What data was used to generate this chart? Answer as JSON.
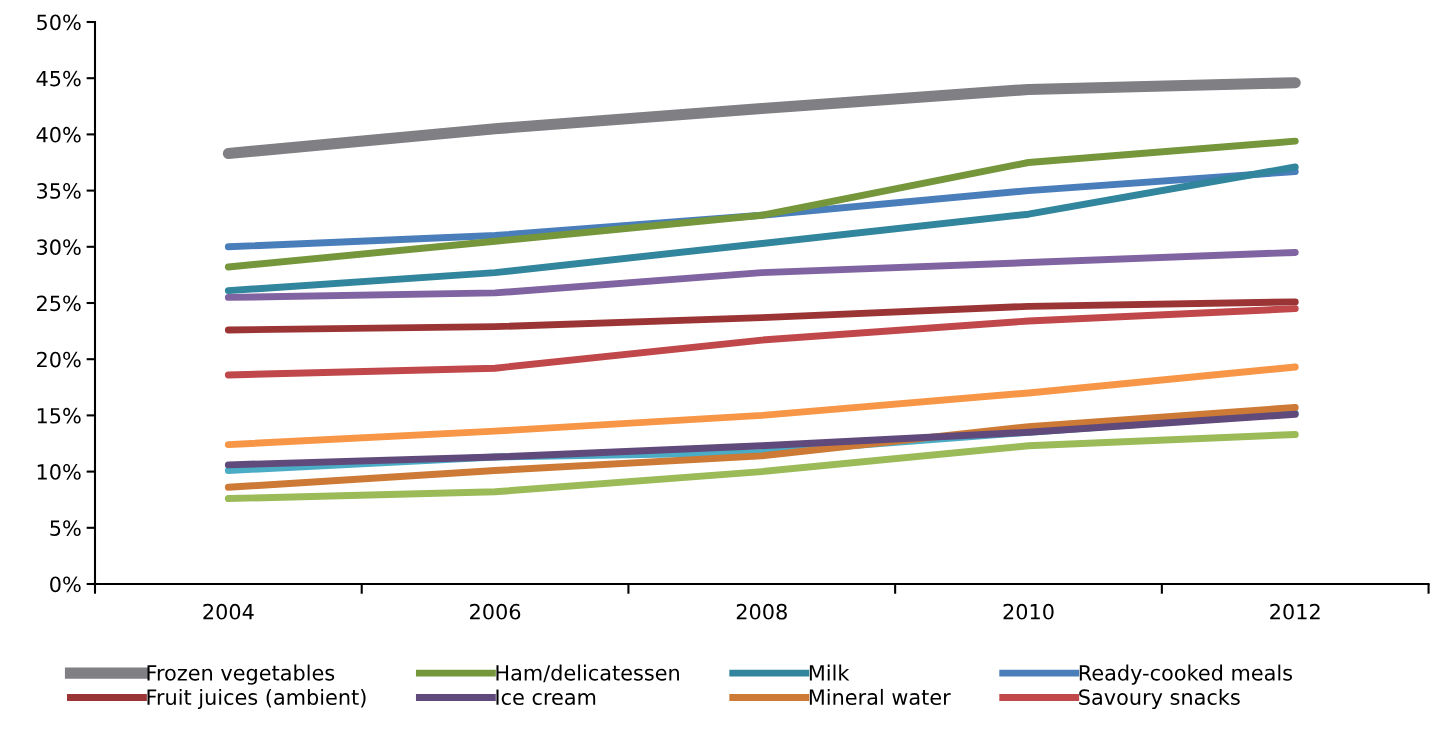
{
  "chart_data": {
    "type": "line",
    "categories": [
      "2004",
      "2006",
      "2008",
      "2010",
      "2012"
    ],
    "ylim": [
      0,
      50
    ],
    "yticks": [
      {
        "value": 0,
        "label": "0%"
      },
      {
        "value": 5,
        "label": "5%"
      },
      {
        "value": 10,
        "label": "10%"
      },
      {
        "value": 15,
        "label": "15%"
      },
      {
        "value": 20,
        "label": "20%"
      },
      {
        "value": 25,
        "label": "25%"
      },
      {
        "value": 30,
        "label": "30%"
      },
      {
        "value": 35,
        "label": "35%"
      },
      {
        "value": 40,
        "label": "40%"
      },
      {
        "value": 45,
        "label": "45%"
      },
      {
        "value": 50,
        "label": "50%"
      }
    ],
    "grid": false,
    "legend": "bottom",
    "marker": "none",
    "line_style": "solid",
    "series": [
      {
        "name": "Frozen vegetables",
        "color": "#7f7f84",
        "values": [
          38.3,
          40.5,
          42.3,
          44.0,
          44.6
        ]
      },
      {
        "name": "Fruit juices (ambient)",
        "color": "#9b3535",
        "values": [
          22.6,
          22.9,
          23.7,
          24.7,
          25.1
        ]
      },
      {
        "name": "Ham/delicatessen",
        "color": "#76963c",
        "values": [
          28.2,
          30.5,
          32.8,
          37.5,
          39.4
        ]
      },
      {
        "name": "Ice cream",
        "color": "#604a7b",
        "values": [
          10.6,
          11.3,
          12.3,
          13.5,
          15.1
        ]
      },
      {
        "name": "Milk",
        "color": "#31859c",
        "values": [
          26.1,
          27.7,
          30.3,
          32.9,
          37.1
        ]
      },
      {
        "name": "Mineral water",
        "color": "#cc7a35",
        "values": [
          8.6,
          10.1,
          11.4,
          14.0,
          15.7
        ]
      },
      {
        "name": "Ready-cooked meals",
        "color": "#4a7ebb",
        "values": [
          30.0,
          31.0,
          32.8,
          35.0,
          36.7
        ]
      },
      {
        "name": "Savoury snacks",
        "color": "#c0474a",
        "values": [
          18.6,
          19.2,
          21.7,
          23.4,
          24.5
        ]
      },
      {
        "color": "#8064a2",
        "values": [
          25.5,
          25.9,
          27.7,
          28.6,
          29.5
        ]
      },
      {
        "color": "#4bacc6",
        "values": [
          10.1,
          11.3,
          11.7,
          13.5,
          15.2
        ]
      },
      {
        "color": "#f79646",
        "values": [
          12.4,
          13.6,
          15.0,
          17.0,
          19.3
        ]
      },
      {
        "color": "#9bbb59",
        "values": [
          7.6,
          8.2,
          10.0,
          12.3,
          13.3
        ]
      }
    ]
  }
}
